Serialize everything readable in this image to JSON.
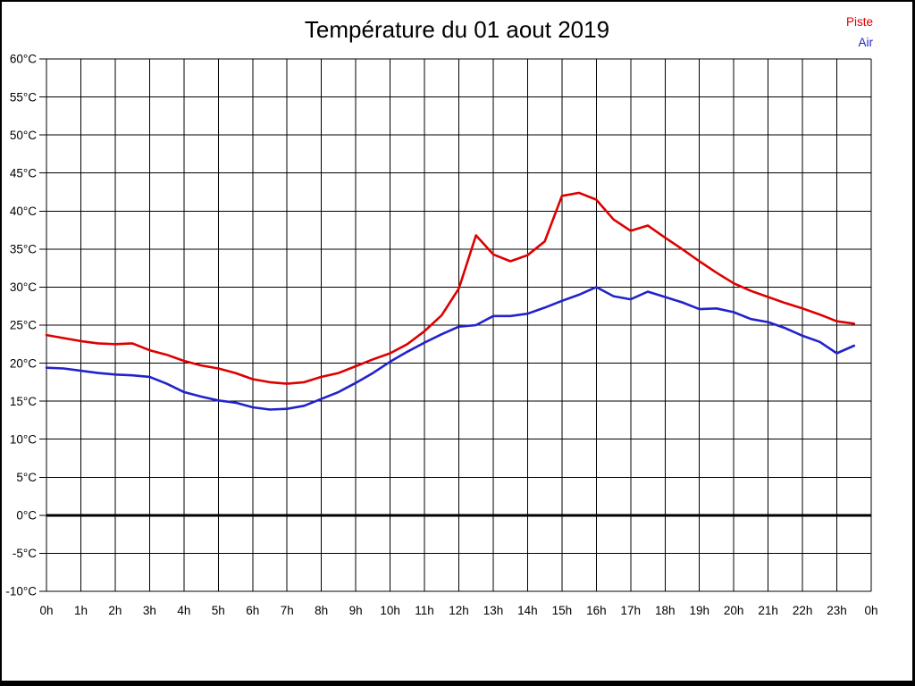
{
  "page": {
    "background": "#ffffff",
    "frame_color": "#000000"
  },
  "chart_data": {
    "type": "line",
    "title": "Température du 01 aout 2019",
    "xlabel": "",
    "ylabel": "",
    "x_unit": "h",
    "y_unit": "°C",
    "xlim": [
      0,
      24
    ],
    "ylim": [
      -10,
      60
    ],
    "x_tick_step": 1,
    "y_tick_step": 5,
    "grid": true,
    "grid_color": "#000000",
    "zero_line_bold": true,
    "legend_position": "top-right",
    "x_tick_labels": [
      "0h",
      "1h",
      "2h",
      "3h",
      "4h",
      "5h",
      "6h",
      "7h",
      "8h",
      "9h",
      "10h",
      "11h",
      "12h",
      "13h",
      "14h",
      "15h",
      "16h",
      "17h",
      "18h",
      "19h",
      "20h",
      "21h",
      "22h",
      "23h",
      "0h"
    ],
    "y_tick_labels": [
      "60°C",
      "55°C",
      "50°C",
      "45°C",
      "40°C",
      "35°C",
      "30°C",
      "25°C",
      "20°C",
      "15°C",
      "10°C",
      "5°C",
      "0°C",
      "-5°C",
      "-10°C"
    ],
    "y_tick_values": [
      60,
      55,
      50,
      45,
      40,
      35,
      30,
      25,
      20,
      15,
      10,
      5,
      0,
      -5,
      -10
    ],
    "x": [
      0,
      0.5,
      1,
      1.5,
      2,
      2.5,
      3,
      3.5,
      4,
      4.5,
      5,
      5.5,
      6,
      6.5,
      7,
      7.5,
      8,
      8.5,
      9,
      9.5,
      10,
      10.5,
      11,
      11.5,
      12,
      12.5,
      13,
      13.5,
      14,
      14.5,
      15,
      15.5,
      16,
      16.5,
      17,
      17.5,
      18,
      18.5,
      19,
      19.5,
      20,
      20.5,
      21,
      21.5,
      22,
      22.5,
      23,
      23.5
    ],
    "series": [
      {
        "name": "Piste",
        "color": "#dd0000",
        "values": [
          23.7,
          23.3,
          22.9,
          22.6,
          22.5,
          22.6,
          21.7,
          21.1,
          20.3,
          19.7,
          19.3,
          18.7,
          17.9,
          17.5,
          17.3,
          17.5,
          18.2,
          18.7,
          19.6,
          20.5,
          21.3,
          22.5,
          24.2,
          26.3,
          29.8,
          36.8,
          34.3,
          33.4,
          34.2,
          36.0,
          42.0,
          42.4,
          41.5,
          38.9,
          37.4,
          38.1,
          36.5,
          35.0,
          33.4,
          31.9,
          30.5,
          29.5,
          28.7,
          27.9,
          27.2,
          26.4,
          25.5,
          25.2
        ]
      },
      {
        "name": "Air",
        "color": "#2222cc",
        "values": [
          19.4,
          19.3,
          19.0,
          18.7,
          18.5,
          18.4,
          18.2,
          17.3,
          16.2,
          15.6,
          15.1,
          14.8,
          14.2,
          13.9,
          14.0,
          14.4,
          15.3,
          16.2,
          17.4,
          18.7,
          20.2,
          21.5,
          22.7,
          23.8,
          24.8,
          25.0,
          26.2,
          26.2,
          26.5,
          27.3,
          28.2,
          29.0,
          30.0,
          28.8,
          28.4,
          29.4,
          28.7,
          28.0,
          27.1,
          27.2,
          26.7,
          25.8,
          25.4,
          24.6,
          23.6,
          22.8,
          21.3,
          22.3
        ]
      }
    ]
  }
}
